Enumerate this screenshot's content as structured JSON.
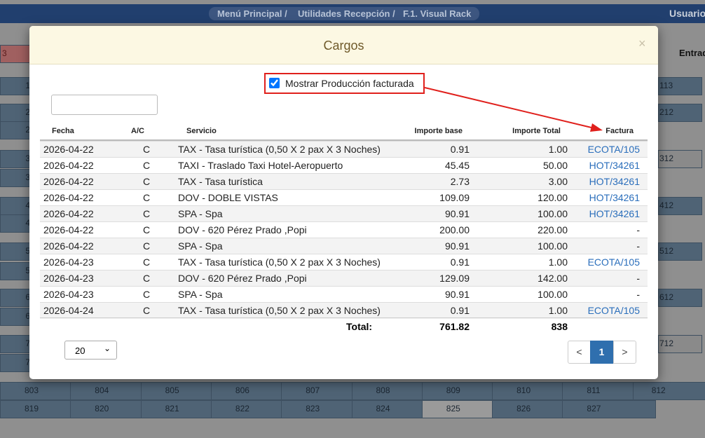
{
  "navbar": {
    "breadcrumb": [
      "Menú Principal /",
      "Utilidades Recepción /",
      "F.1. Visual Rack"
    ],
    "user": "Usuario",
    "side_header": "Entrad"
  },
  "background": {
    "top_left": "3",
    "left_digits": [
      "1",
      "2",
      "2",
      "3",
      "3",
      "4",
      "4",
      "5",
      "5",
      "6",
      "6",
      "7",
      "7"
    ],
    "right_rooms": [
      "113",
      "212",
      "312",
      "412",
      "512",
      "612",
      "712"
    ],
    "bottom_row_1": [
      "803",
      "804",
      "805",
      "806",
      "807",
      "808",
      "809",
      "810",
      "811",
      "812"
    ],
    "bottom_row_2": [
      "819",
      "820",
      "821",
      "822",
      "823",
      "824",
      "825",
      "826",
      "827"
    ]
  },
  "modal": {
    "title": "Cargos",
    "close": "×",
    "checkbox_label": "Mostrar Producción facturada",
    "table": {
      "headers": [
        "Fecha",
        "A/C",
        "Servicio",
        "Importe base",
        "Importe Total",
        "Factura"
      ],
      "rows": [
        [
          "2026-04-22",
          "C",
          "TAX - Tasa turística (0,50 X 2 pax X 3 Noches)",
          "0.91",
          "1.00",
          "ECOTA/105"
        ],
        [
          "2026-04-22",
          "C",
          "TAXI - Traslado Taxi Hotel-Aeropuerto",
          "45.45",
          "50.00",
          "HOT/34261"
        ],
        [
          "2026-04-22",
          "C",
          "TAX - Tasa turística",
          "2.73",
          "3.00",
          "HOT/34261"
        ],
        [
          "2026-04-22",
          "C",
          "DOV - DOBLE VISTAS",
          "109.09",
          "120.00",
          "HOT/34261"
        ],
        [
          "2026-04-22",
          "C",
          "SPA - Spa",
          "90.91",
          "100.00",
          "HOT/34261"
        ],
        [
          "2026-04-22",
          "C",
          "DOV - 620 Pérez Prado ,Popi",
          "200.00",
          "220.00",
          "-"
        ],
        [
          "2026-04-22",
          "C",
          "SPA - Spa",
          "90.91",
          "100.00",
          "-"
        ],
        [
          "2026-04-23",
          "C",
          "TAX - Tasa turística (0,50 X 2 pax X 3 Noches)",
          "0.91",
          "1.00",
          "ECOTA/105"
        ],
        [
          "2026-04-23",
          "C",
          "DOV - 620 Pérez Prado ,Popi",
          "129.09",
          "142.00",
          "-"
        ],
        [
          "2026-04-23",
          "C",
          "SPA - Spa",
          "90.91",
          "100.00",
          "-"
        ],
        [
          "2026-04-24",
          "C",
          "TAX - Tasa turística (0,50 X 2 pax X 3 Noches)",
          "0.91",
          "1.00",
          "ECOTA/105"
        ]
      ],
      "total_label": "Total:",
      "total_base": "761.82",
      "total_total": "838"
    },
    "page_size": "20",
    "pagination": [
      "<",
      "1",
      ">"
    ]
  }
}
